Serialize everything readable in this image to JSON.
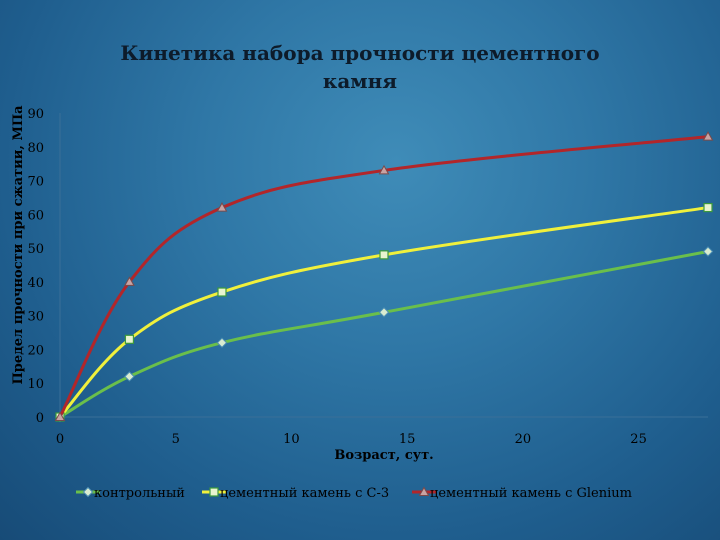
{
  "chart_data": {
    "type": "line",
    "title_line1": "Кинетика набора прочности цементного",
    "title_line2": "камня",
    "xlabel": "Возраст, сут.",
    "ylabel": "Предел прочности при сжатии, МПа",
    "xlim": [
      0,
      28
    ],
    "ylim": [
      0,
      90
    ],
    "x_ticks": [
      0,
      5,
      10,
      15,
      20,
      25
    ],
    "y_ticks": [
      0,
      10,
      20,
      30,
      40,
      50,
      60,
      70,
      80,
      90
    ],
    "grid": false,
    "legend_position": "bottom",
    "series": [
      {
        "name": "контрольный",
        "color": "#6abf4b",
        "marker": "diamond",
        "x": [
          0,
          3,
          7,
          14,
          28
        ],
        "y": [
          0,
          12,
          22,
          31,
          49
        ]
      },
      {
        "name": "цементный камень с С-3",
        "color": "#f0f03c",
        "marker": "square",
        "x": [
          0,
          3,
          7,
          14,
          28
        ],
        "y": [
          0,
          23,
          37,
          48,
          62
        ]
      },
      {
        "name": "цементный камень с Glenium",
        "color": "#b2262a",
        "marker": "triangle",
        "x": [
          0,
          3,
          7,
          14,
          28
        ],
        "y": [
          0,
          40,
          62,
          73,
          83
        ]
      }
    ]
  }
}
